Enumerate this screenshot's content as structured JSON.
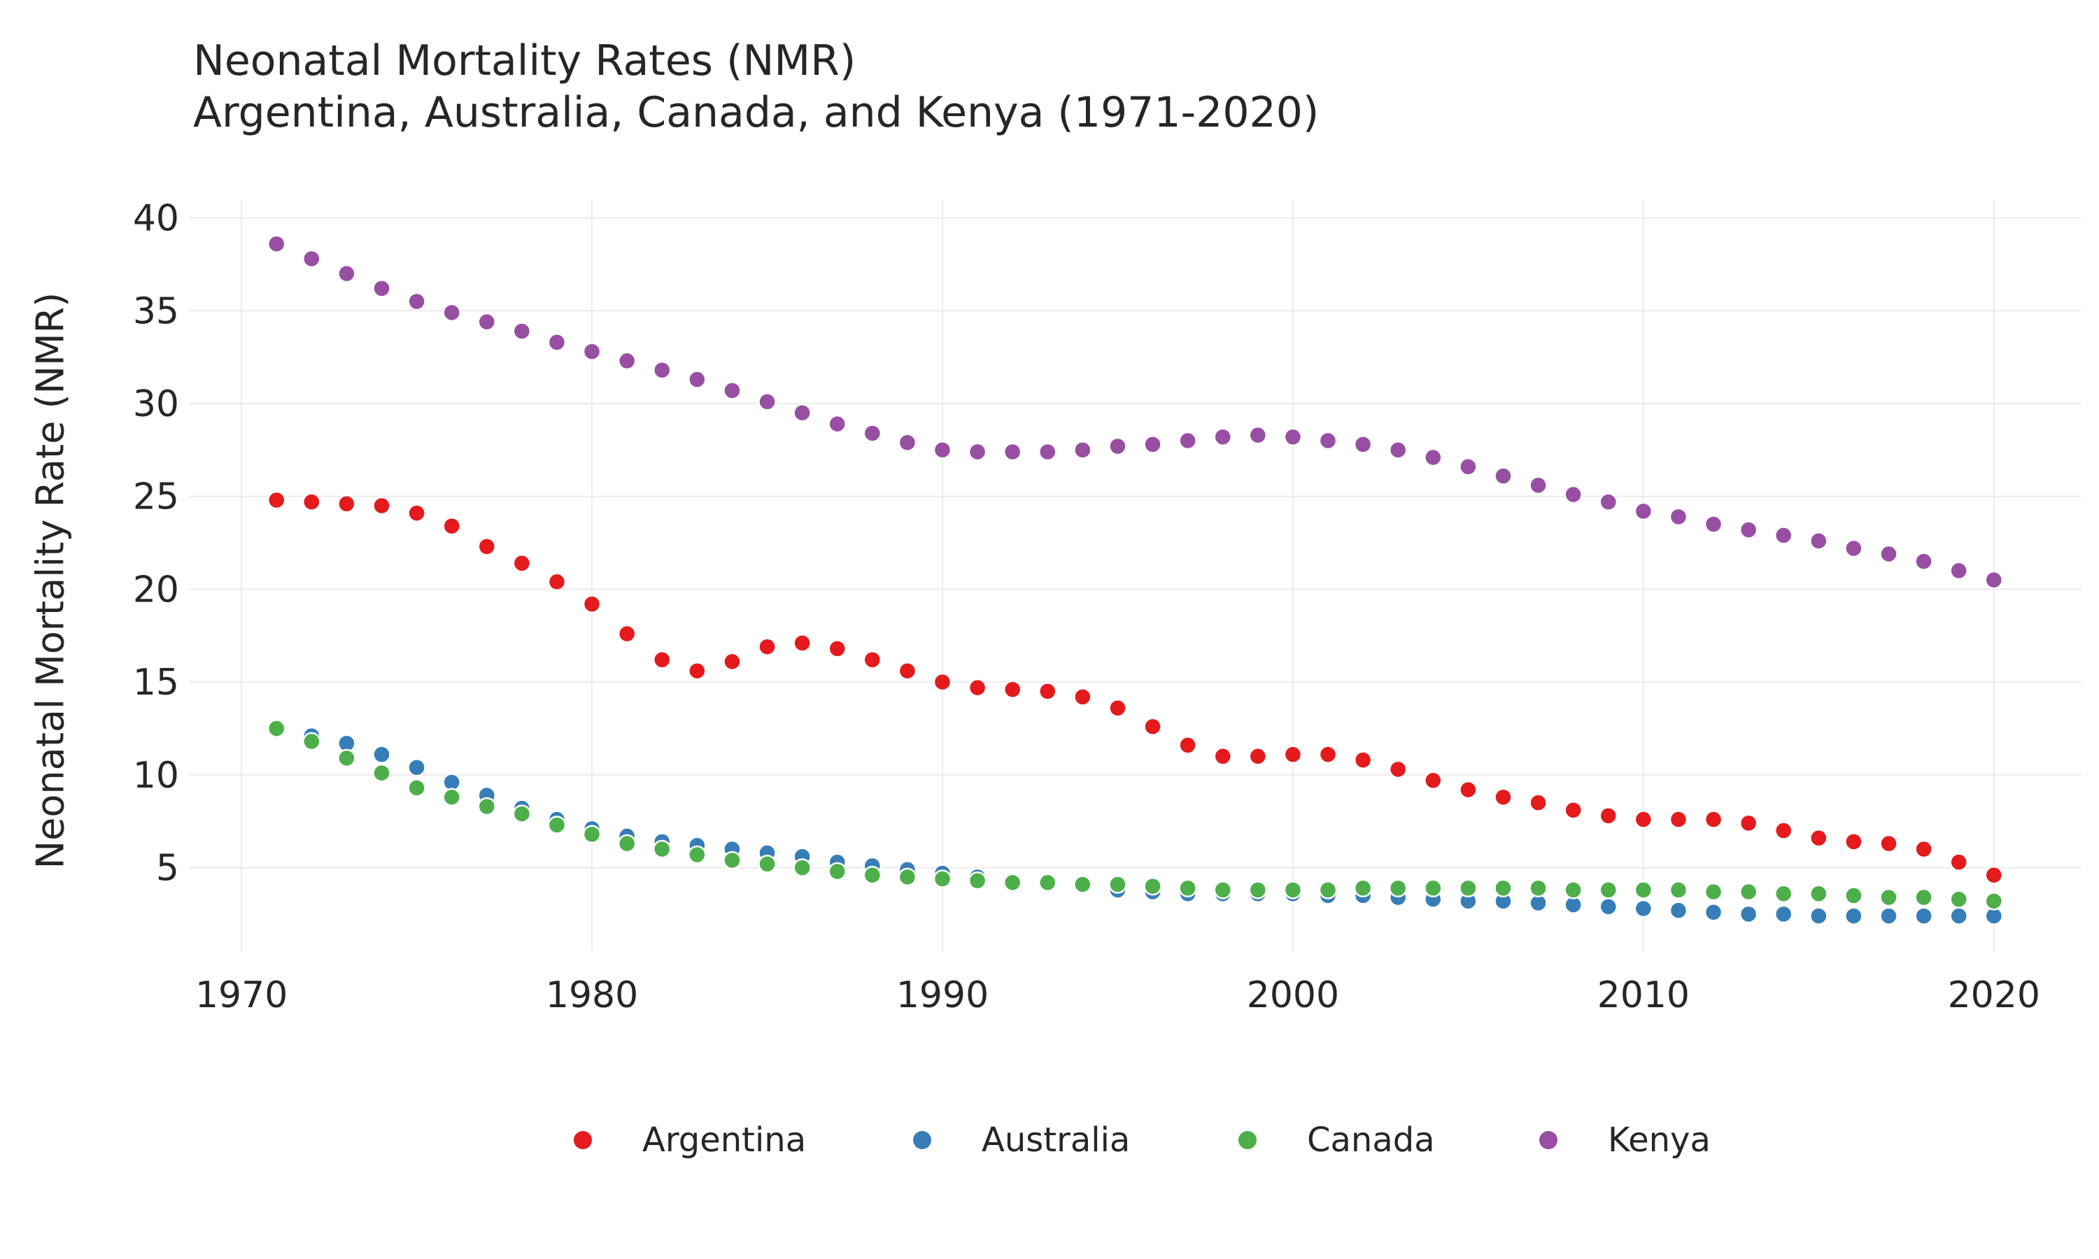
{
  "chart_data": {
    "type": "scatter",
    "title": "Neonatal Mortality Rates (NMR)",
    "subtitle": "Argentina, Australia, Canada, and Kenya (1971-2020)",
    "xlabel": "",
    "ylabel": "Neonatal Mortality Rate (NMR)",
    "xlim": [
      1968.5,
      2022.5
    ],
    "ylim": [
      0.5,
      41
    ],
    "x_ticks": [
      1970,
      1980,
      1990,
      2000,
      2010,
      2020
    ],
    "y_ticks": [
      5,
      10,
      15,
      20,
      25,
      30,
      35,
      40
    ],
    "grid": true,
    "legend_position": "bottom",
    "x": [
      1971,
      1972,
      1973,
      1974,
      1975,
      1976,
      1977,
      1978,
      1979,
      1980,
      1981,
      1982,
      1983,
      1984,
      1985,
      1986,
      1987,
      1988,
      1989,
      1990,
      1991,
      1992,
      1993,
      1994,
      1995,
      1996,
      1997,
      1998,
      1999,
      2000,
      2001,
      2002,
      2003,
      2004,
      2005,
      2006,
      2007,
      2008,
      2009,
      2010,
      2011,
      2012,
      2013,
      2014,
      2015,
      2016,
      2017,
      2018,
      2019,
      2020
    ],
    "series": [
      {
        "name": "Argentina",
        "color": "#e41a1c",
        "values": [
          24.8,
          24.7,
          24.6,
          24.5,
          24.1,
          23.4,
          22.3,
          21.4,
          20.4,
          19.2,
          17.6,
          16.2,
          15.6,
          16.1,
          16.9,
          17.1,
          16.8,
          16.2,
          15.6,
          15.0,
          14.7,
          14.6,
          14.5,
          14.2,
          13.6,
          12.6,
          11.6,
          11.0,
          11.0,
          11.1,
          11.1,
          10.8,
          10.3,
          9.7,
          9.2,
          8.8,
          8.5,
          8.1,
          7.8,
          7.6,
          7.6,
          7.6,
          7.4,
          7.0,
          6.6,
          6.4,
          6.3,
          6.0,
          5.3,
          4.6
        ]
      },
      {
        "name": "Australia",
        "color": "#377eb8",
        "values": [
          12.4,
          12.1,
          11.7,
          11.1,
          10.4,
          9.6,
          8.9,
          8.2,
          7.6,
          7.1,
          6.7,
          6.4,
          6.2,
          6.0,
          5.8,
          5.6,
          5.3,
          5.1,
          4.9,
          4.7,
          4.5,
          4.3,
          4.1,
          4.0,
          3.8,
          3.7,
          3.6,
          3.6,
          3.6,
          3.6,
          3.5,
          3.5,
          3.4,
          3.3,
          3.2,
          3.2,
          3.1,
          3.0,
          2.9,
          2.8,
          2.7,
          2.6,
          2.5,
          2.5,
          2.4,
          2.4,
          2.4,
          2.4,
          2.4,
          2.4
        ]
      },
      {
        "name": "Canada",
        "color": "#4daf4a",
        "values": [
          12.5,
          11.8,
          10.9,
          10.1,
          9.3,
          8.8,
          8.3,
          7.9,
          7.3,
          6.8,
          6.3,
          6.0,
          5.7,
          5.4,
          5.2,
          5.0,
          4.8,
          4.6,
          4.5,
          4.4,
          4.3,
          4.2,
          4.2,
          4.1,
          4.1,
          4.0,
          3.9,
          3.8,
          3.8,
          3.8,
          3.8,
          3.9,
          3.9,
          3.9,
          3.9,
          3.9,
          3.9,
          3.8,
          3.8,
          3.8,
          3.8,
          3.7,
          3.7,
          3.6,
          3.6,
          3.5,
          3.4,
          3.4,
          3.3,
          3.2
        ]
      },
      {
        "name": "Kenya",
        "color": "#984ea3",
        "values": [
          38.6,
          37.8,
          37.0,
          36.2,
          35.5,
          34.9,
          34.4,
          33.9,
          33.3,
          32.8,
          32.3,
          31.8,
          31.3,
          30.7,
          30.1,
          29.5,
          28.9,
          28.4,
          27.9,
          27.5,
          27.4,
          27.4,
          27.4,
          27.5,
          27.7,
          27.8,
          28.0,
          28.2,
          28.3,
          28.2,
          28.0,
          27.8,
          27.5,
          27.1,
          26.6,
          26.1,
          25.6,
          25.1,
          24.7,
          24.2,
          23.9,
          23.5,
          23.2,
          22.9,
          22.6,
          22.2,
          21.9,
          21.5,
          21.0,
          20.5
        ]
      }
    ]
  }
}
